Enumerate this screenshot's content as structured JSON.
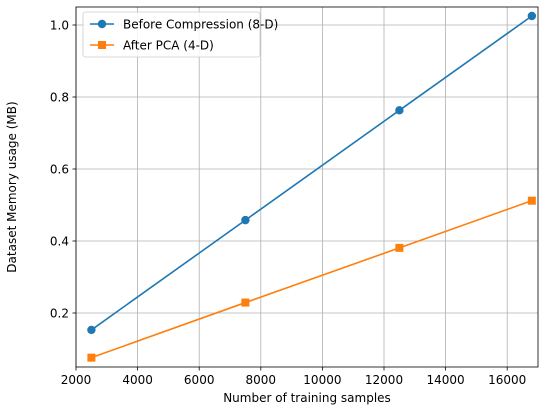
{
  "chart_data": {
    "type": "line",
    "title": "",
    "xlabel": "Number of training samples",
    "ylabel": "Dataset Memory usage (MB)",
    "xlim": [
      2000,
      17000
    ],
    "ylim": [
      0.05,
      1.05
    ],
    "xticks": [
      2000,
      4000,
      6000,
      8000,
      10000,
      12000,
      14000,
      16000
    ],
    "yticks": [
      0.2,
      0.4,
      0.6,
      0.8,
      1.0
    ],
    "xtick_labels": [
      "2000",
      "4000",
      "6000",
      "8000",
      "10000",
      "12000",
      "14000",
      "16000"
    ],
    "ytick_labels": [
      "0.2",
      "0.4",
      "0.6",
      "0.8",
      "1.0"
    ],
    "grid": true,
    "legend_position": "top-left",
    "series": [
      {
        "name": "Before Compression (8-D)",
        "color": "#1f77b4",
        "marker": "circle",
        "x": [
          2500,
          7500,
          12500,
          16800
        ],
        "y": [
          0.153,
          0.458,
          0.763,
          1.025
        ]
      },
      {
        "name": "After PCA (4-D)",
        "color": "#ff7f0e",
        "marker": "square",
        "x": [
          2500,
          7500,
          12500,
          16800
        ],
        "y": [
          0.076,
          0.229,
          0.381,
          0.512
        ]
      }
    ]
  }
}
